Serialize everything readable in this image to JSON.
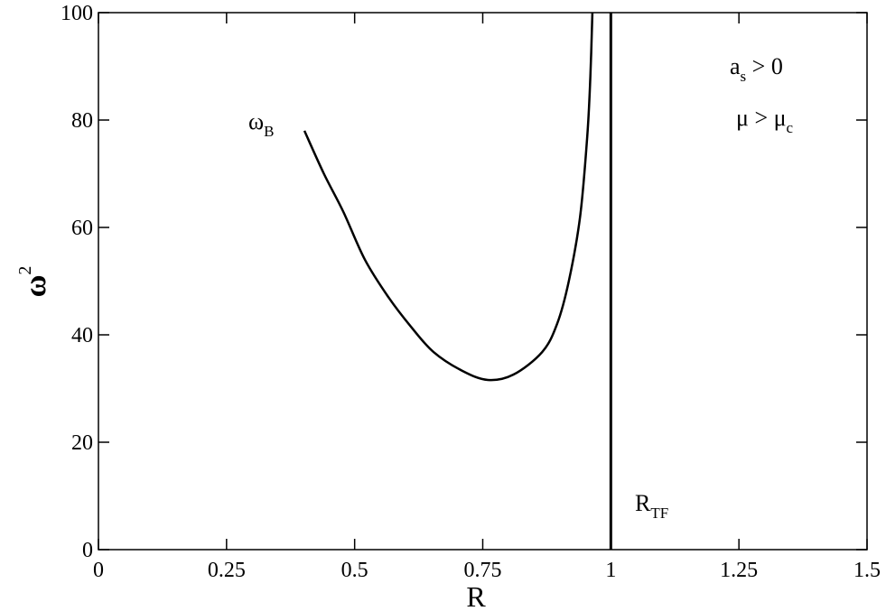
{
  "chart_data": {
    "type": "line",
    "xlabel": "R",
    "ylabel": {
      "text": "ω",
      "sup": "2"
    },
    "xlim": [
      0,
      1.5
    ],
    "xticks": [
      0,
      0.25,
      0.5,
      0.75,
      1,
      1.25,
      1.5
    ],
    "ylim": [
      0,
      100
    ],
    "yticks": [
      0,
      20,
      40,
      60,
      80,
      100
    ],
    "series": [
      {
        "color": "#000000",
        "x": [
          0.402,
          0.44,
          0.478,
          0.52,
          0.566,
          0.61,
          0.654,
          0.71,
          0.76,
          0.81,
          0.866,
          0.895,
          0.918,
          0.94,
          0.954,
          0.96,
          0.964
        ],
        "values": [
          78,
          70,
          62.9,
          54,
          47,
          41.5,
          36.8,
          33.3,
          31.6,
          32.6,
          36.8,
          42,
          50,
          62,
          77,
          88,
          100
        ]
      }
    ],
    "vline": {
      "x": 1,
      "color": "#000000"
    },
    "annotations": [
      {
        "text": "ω",
        "sub": "B"
      },
      {
        "text": "a",
        "sub": "s",
        "rest": " > 0"
      },
      {
        "text": "μ > μ",
        "sub": "c"
      },
      {
        "text": "R",
        "sub": "TF"
      }
    ]
  }
}
